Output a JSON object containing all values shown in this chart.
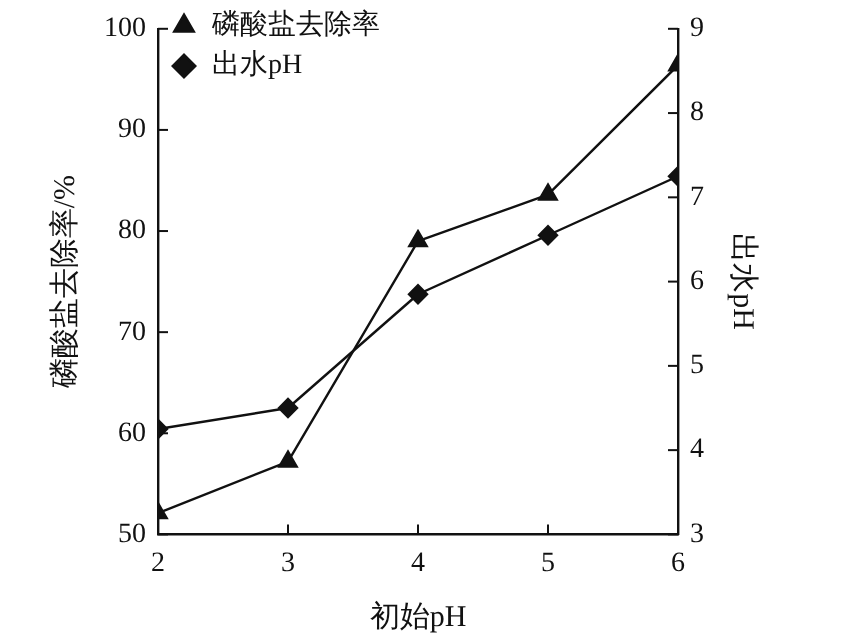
{
  "chart_data": {
    "type": "line",
    "xlabel": "初始pH",
    "ylabel": "磷酸盐去除率/%",
    "y2label": "出水pH",
    "x": [
      2,
      3,
      4,
      5,
      6
    ],
    "xlim": [
      2,
      6
    ],
    "xticks": [
      2,
      3,
      4,
      5,
      6
    ],
    "ylim": [
      50,
      100
    ],
    "yticks": [
      50,
      60,
      70,
      80,
      90,
      100
    ],
    "y2lim": [
      3,
      9
    ],
    "y2ticks": [
      3,
      4,
      5,
      6,
      7,
      8,
      9
    ],
    "series": [
      {
        "name": "磷酸盐去除率",
        "color": "#111111",
        "marker": "triangle",
        "values": [
          52.1,
          57.2,
          79,
          83.6,
          96.4
        ]
      },
      {
        "name": "出水pH",
        "color": "#111111",
        "marker": "diamond",
        "axis": "y2",
        "values": [
          4.25,
          4.5,
          5.85,
          6.55,
          7.25
        ]
      }
    ],
    "grid": false,
    "legend": "top left",
    "line_style": "solid"
  }
}
